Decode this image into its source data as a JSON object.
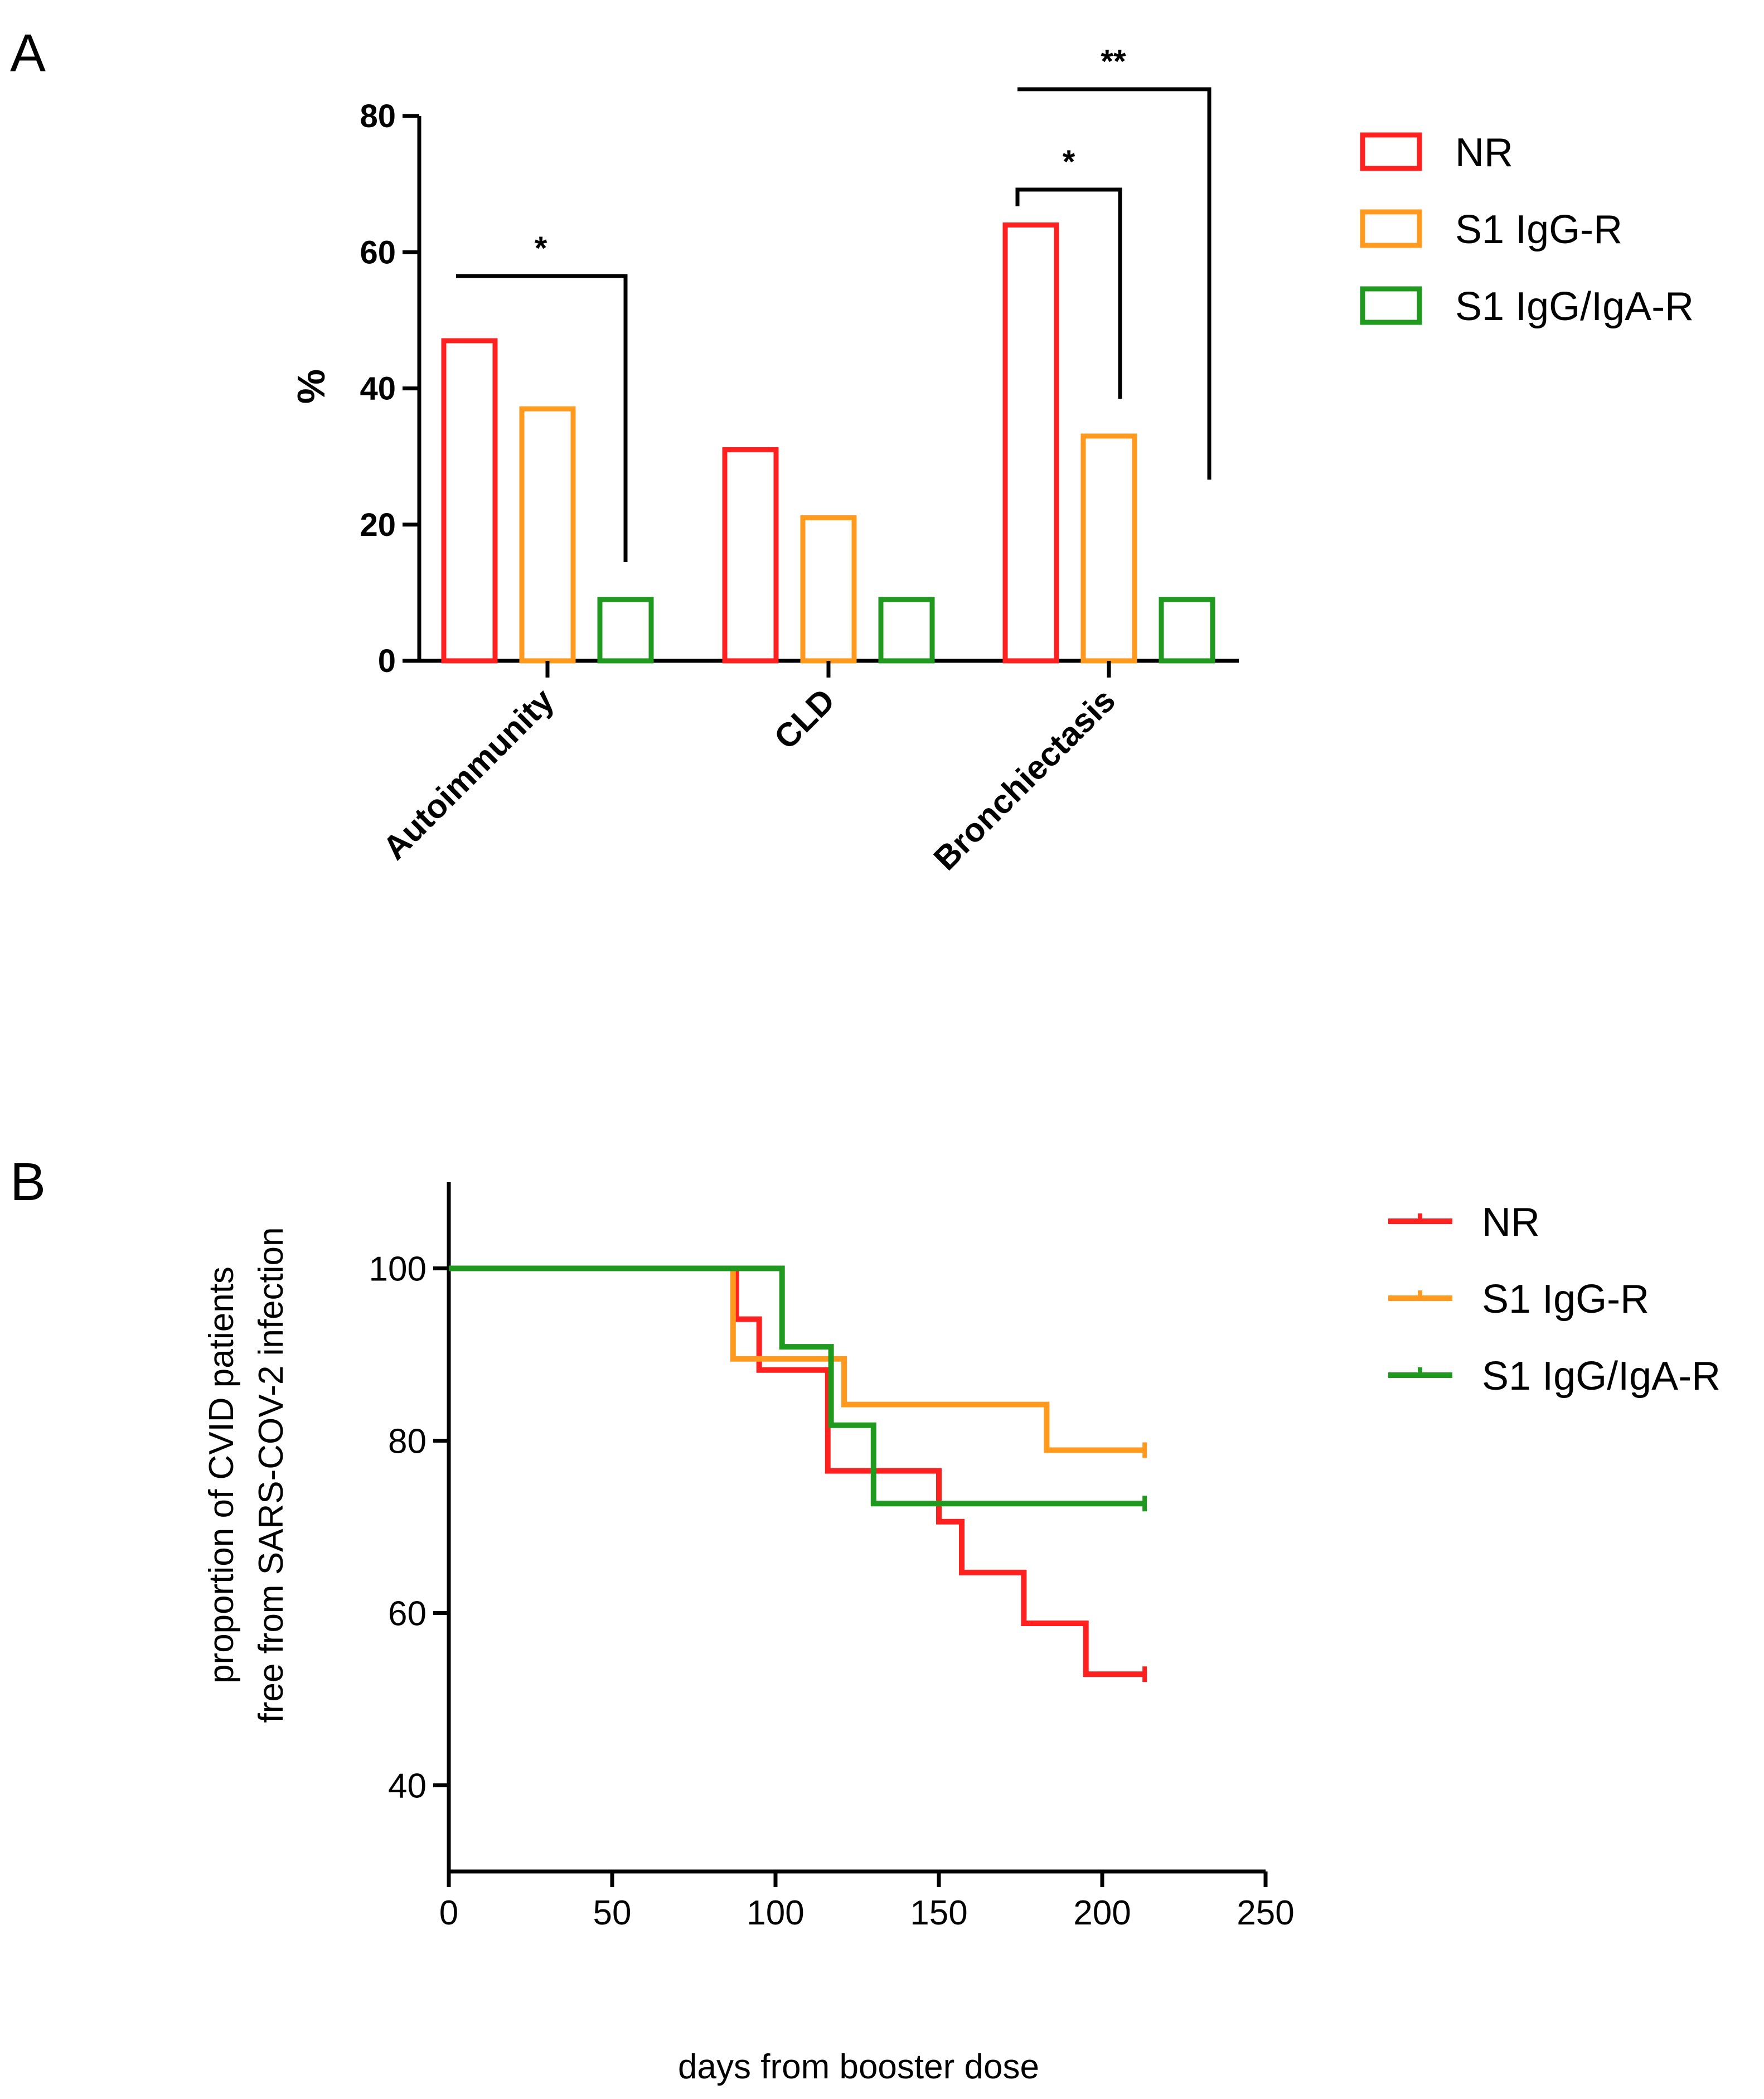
{
  "chart_data": [
    {
      "panel": "A",
      "type": "bar",
      "title": "",
      "xlabel": "",
      "ylabel": "%",
      "ylim": [
        0,
        80
      ],
      "yticks": [
        0,
        20,
        40,
        60,
        80
      ],
      "categories": [
        "Autoimmunity",
        "CLD",
        "Bronchiectasis"
      ],
      "series": [
        {
          "name": "NR",
          "color": "#ff2020",
          "values": [
            47,
            31,
            64
          ]
        },
        {
          "name": "S1 IgG-R",
          "color": "#ff9a1f",
          "values": [
            37,
            21,
            33
          ]
        },
        {
          "name": "S1 IgG/IgA-R",
          "color": "#1f9a1f",
          "values": [
            9,
            9,
            9
          ]
        }
      ],
      "annotations": [
        {
          "label": "*",
          "category": "Autoimmunity",
          "between": [
            "NR",
            "S1 IgG/IgA-R"
          ]
        },
        {
          "label": "*",
          "category": "Bronchiectasis",
          "between": [
            "NR",
            "S1 IgG-R"
          ]
        },
        {
          "label": "**",
          "category": "Bronchiectasis",
          "between": [
            "NR",
            "S1 IgG/IgA-R"
          ]
        }
      ],
      "legend_position": "top-right",
      "grid": false
    },
    {
      "panel": "B",
      "type": "line",
      "step": true,
      "title": "",
      "xlabel": "days from booster dose",
      "ylabel_lines": [
        "proportion of CVID patients",
        "free from SARS-COV-2 infection"
      ],
      "xlim": [
        0,
        250
      ],
      "ylim": [
        30,
        110
      ],
      "xticks": [
        0,
        50,
        100,
        150,
        200,
        250
      ],
      "yticks": [
        40,
        60,
        80,
        100
      ],
      "series": [
        {
          "name": "NR",
          "color": "#ff2020",
          "x": [
            0,
            88,
            95,
            116,
            150,
            157,
            176,
            195,
            213
          ],
          "y": [
            100,
            94.1,
            88.2,
            76.5,
            70.6,
            64.7,
            58.8,
            52.9,
            52.9
          ]
        },
        {
          "name": "S1 IgG-R",
          "color": "#ff9a1f",
          "x": [
            0,
            87,
            121,
            183,
            213
          ],
          "y": [
            100,
            89.5,
            84.2,
            78.9,
            78.9
          ]
        },
        {
          "name": "S1 IgG/IgA-R",
          "color": "#1f9a1f",
          "x": [
            0,
            102,
            117,
            130,
            213
          ],
          "y": [
            100,
            90.9,
            81.8,
            72.7,
            72.7
          ]
        }
      ],
      "legend_position": "top-right",
      "grid": false
    }
  ],
  "panels": {
    "a_letter": "A",
    "b_letter": "B"
  }
}
